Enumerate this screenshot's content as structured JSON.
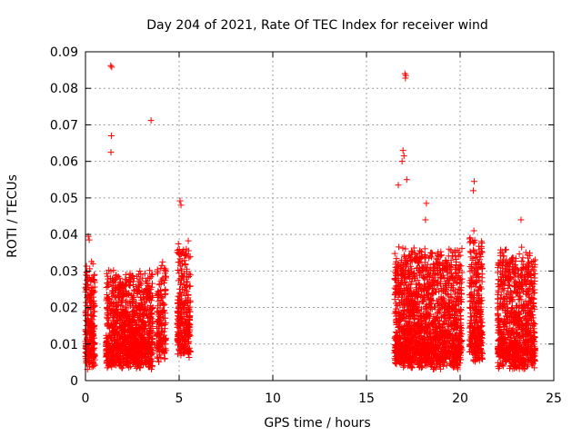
{
  "chart_data": {
    "type": "scatter",
    "title": "Day 204 of 2021, Rate Of TEC Index for receiver wind",
    "xlabel": "GPS time / hours",
    "ylabel": "ROTI / TECUs",
    "xlim": [
      0,
      25
    ],
    "ylim": [
      0,
      0.09
    ],
    "xticks": [
      0,
      5,
      10,
      15,
      20,
      25
    ],
    "yticks": [
      0,
      0.01,
      0.02,
      0.03,
      0.04,
      0.05,
      0.06,
      0.07,
      0.08,
      0.09
    ],
    "xtick_labels": [
      "0",
      "5",
      "10",
      "15",
      "20",
      "25"
    ],
    "ytick_labels": [
      "0",
      "0.01",
      "0.02",
      "0.03",
      "0.04",
      "0.05",
      "0.06",
      "0.07",
      "0.08",
      "0.09"
    ],
    "grid": true,
    "marker": "+",
    "color": "#ff0000",
    "outliers": [
      {
        "x": 1.35,
        "y": 0.0862
      },
      {
        "x": 1.4,
        "y": 0.0858
      },
      {
        "x": 1.38,
        "y": 0.067
      },
      {
        "x": 1.36,
        "y": 0.0625
      },
      {
        "x": 3.5,
        "y": 0.0712
      },
      {
        "x": 17.05,
        "y": 0.084
      },
      {
        "x": 17.1,
        "y": 0.0835
      },
      {
        "x": 17.08,
        "y": 0.0828
      },
      {
        "x": 16.95,
        "y": 0.063
      },
      {
        "x": 17.0,
        "y": 0.0615
      },
      {
        "x": 16.9,
        "y": 0.06
      },
      {
        "x": 17.15,
        "y": 0.055
      },
      {
        "x": 16.7,
        "y": 0.0535
      },
      {
        "x": 18.2,
        "y": 0.0485
      },
      {
        "x": 18.15,
        "y": 0.044
      },
      {
        "x": 20.75,
        "y": 0.0545
      },
      {
        "x": 20.7,
        "y": 0.052
      },
      {
        "x": 5.05,
        "y": 0.0492
      },
      {
        "x": 5.1,
        "y": 0.048
      },
      {
        "x": 23.25,
        "y": 0.044
      },
      {
        "x": 0.15,
        "y": 0.0395
      },
      {
        "x": 0.2,
        "y": 0.0385
      }
    ],
    "clusters": [
      {
        "x_start": 0.0,
        "x_end": 0.5,
        "y_min": 0.002,
        "y_max": 0.036,
        "density": 260
      },
      {
        "x_start": 1.1,
        "x_end": 3.6,
        "y_min": 0.002,
        "y_max": 0.034,
        "density": 1100
      },
      {
        "x_start": 3.8,
        "x_end": 4.3,
        "y_min": 0.004,
        "y_max": 0.036,
        "density": 160
      },
      {
        "x_start": 4.9,
        "x_end": 5.6,
        "y_min": 0.005,
        "y_max": 0.046,
        "density": 280
      },
      {
        "x_start": 16.5,
        "x_end": 20.1,
        "y_min": 0.002,
        "y_max": 0.043,
        "density": 1700
      },
      {
        "x_start": 20.5,
        "x_end": 21.2,
        "y_min": 0.004,
        "y_max": 0.05,
        "density": 300
      },
      {
        "x_start": 22.0,
        "x_end": 24.0,
        "y_min": 0.002,
        "y_max": 0.042,
        "density": 900
      }
    ]
  }
}
